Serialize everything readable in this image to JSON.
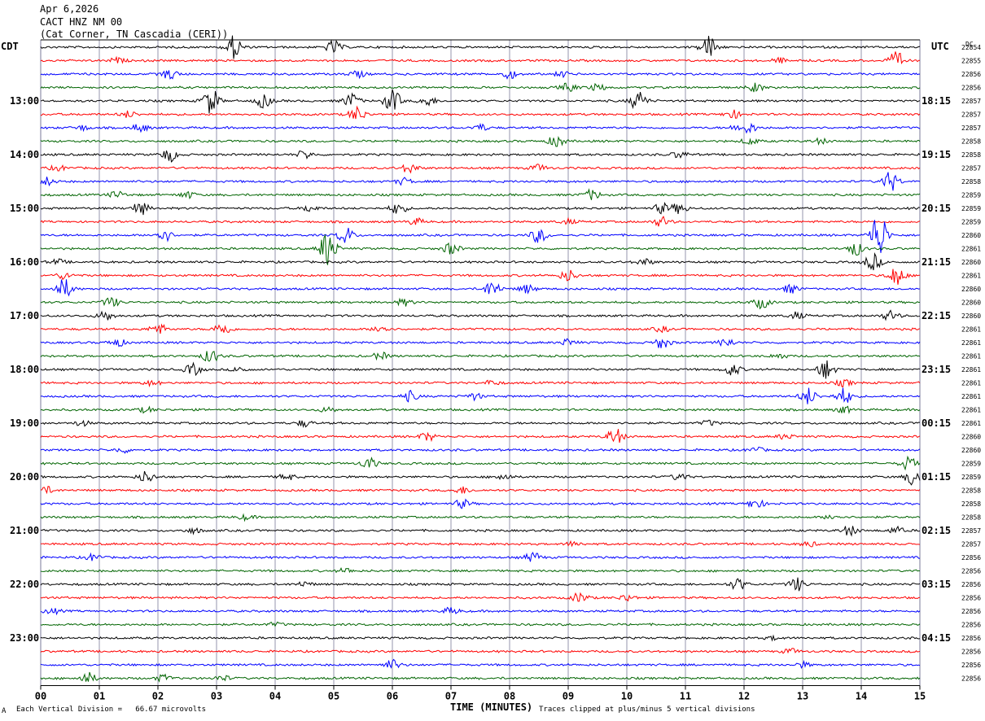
{
  "header": {
    "date": "Apr 6,2026",
    "station": "CACT HNZ NM 00",
    "location": "(Cat Corner, TN Cascadia (CERI))"
  },
  "left_zone": "CDT",
  "right_zone": "UTC",
  "dc_header": "DC",
  "footer": {
    "scale": "Each Vertical Division =   66.67 microvolts",
    "clip": "Traces clipped at plus/minus 5 vertical divisions",
    "mark": "A"
  },
  "colors": {
    "trace_cycle": [
      "#000000",
      "#ff0000",
      "#0000ff",
      "#006400"
    ],
    "grid": "#7a7a9a",
    "axis": "#000000"
  },
  "chart_data": {
    "type": "line",
    "title": "",
    "xlabel": "TIME (MINUTES)",
    "ylabel": "",
    "xlim": [
      0,
      15
    ],
    "x_ticks": [
      "00",
      "01",
      "02",
      "03",
      "04",
      "05",
      "06",
      "07",
      "08",
      "09",
      "10",
      "11",
      "12",
      "13",
      "14",
      "15"
    ],
    "left_time_labels": [
      {
        "row": 4,
        "text": "13:00"
      },
      {
        "row": 8,
        "text": "14:00"
      },
      {
        "row": 12,
        "text": "15:00"
      },
      {
        "row": 16,
        "text": "16:00"
      },
      {
        "row": 20,
        "text": "17:00"
      },
      {
        "row": 24,
        "text": "18:00"
      },
      {
        "row": 28,
        "text": "19:00"
      },
      {
        "row": 32,
        "text": "20:00"
      },
      {
        "row": 36,
        "text": "21:00"
      },
      {
        "row": 40,
        "text": "22:00"
      },
      {
        "row": 44,
        "text": "23:00"
      }
    ],
    "right_time_labels": [
      {
        "row": 4,
        "text": "18:15"
      },
      {
        "row": 8,
        "text": "19:15"
      },
      {
        "row": 12,
        "text": "20:15"
      },
      {
        "row": 16,
        "text": "21:15"
      },
      {
        "row": 20,
        "text": "22:15"
      },
      {
        "row": 24,
        "text": "23:15"
      },
      {
        "row": 28,
        "text": "00:15"
      },
      {
        "row": 32,
        "text": "01:15"
      },
      {
        "row": 36,
        "text": "02:15"
      },
      {
        "row": 40,
        "text": "03:15"
      },
      {
        "row": 44,
        "text": "04:15"
      }
    ],
    "dc_offsets": [
      "22854",
      "22855",
      "22856",
      "22856",
      "22857",
      "22857",
      "22857",
      "22858",
      "22858",
      "22857",
      "22858",
      "22859",
      "22859",
      "22859",
      "22860",
      "22861",
      "22860",
      "22861",
      "22860",
      "22860",
      "22860",
      "22861",
      "22861",
      "22861",
      "22861",
      "22861",
      "22861",
      "22861",
      "22861",
      "22860",
      "22860",
      "22859",
      "22859",
      "22858",
      "22858",
      "22858",
      "22857",
      "22857",
      "22856",
      "22856",
      "22856",
      "22856",
      "22856",
      "22856",
      "22856",
      "22856",
      "22856",
      "22856"
    ],
    "events": [
      [
        [
          3.3,
          14
        ],
        [
          5.0,
          8
        ],
        [
          11.4,
          14
        ]
      ],
      [
        [
          14.6,
          10
        ],
        [
          1.3,
          3
        ],
        [
          12.6,
          3
        ]
      ],
      [
        [
          2.2,
          6
        ],
        [
          5.4,
          4
        ],
        [
          8.0,
          5
        ],
        [
          8.9,
          3
        ]
      ],
      [
        [
          9.0,
          5
        ],
        [
          9.5,
          4
        ],
        [
          12.2,
          5
        ]
      ],
      [
        [
          2.9,
          16
        ],
        [
          3.8,
          8
        ],
        [
          5.3,
          9
        ],
        [
          6.0,
          14
        ],
        [
          6.6,
          6
        ],
        [
          10.2,
          12
        ]
      ],
      [
        [
          1.5,
          4
        ],
        [
          5.4,
          9
        ],
        [
          11.8,
          5
        ]
      ],
      [
        [
          0.7,
          3
        ],
        [
          1.7,
          5
        ],
        [
          7.5,
          4
        ],
        [
          11.9,
          4
        ],
        [
          12.1,
          5
        ]
      ],
      [
        [
          8.8,
          7
        ],
        [
          12.1,
          4
        ],
        [
          13.3,
          3
        ]
      ],
      [
        [
          2.2,
          8
        ],
        [
          4.5,
          5
        ],
        [
          10.9,
          4
        ]
      ],
      [
        [
          0.3,
          3
        ],
        [
          6.3,
          6
        ],
        [
          8.5,
          4
        ]
      ],
      [
        [
          0.1,
          5
        ],
        [
          6.2,
          4
        ],
        [
          14.5,
          12
        ]
      ],
      [
        [
          1.3,
          4
        ],
        [
          2.5,
          4
        ],
        [
          9.4,
          6
        ]
      ],
      [
        [
          1.7,
          8
        ],
        [
          4.6,
          4
        ],
        [
          6.1,
          7
        ],
        [
          10.6,
          6
        ],
        [
          10.9,
          6
        ]
      ],
      [
        [
          6.4,
          4
        ],
        [
          9.0,
          3
        ],
        [
          10.6,
          6
        ]
      ],
      [
        [
          2.1,
          8
        ],
        [
          5.2,
          10
        ],
        [
          8.5,
          9
        ],
        [
          14.3,
          30
        ]
      ],
      [
        [
          4.9,
          22
        ],
        [
          7.0,
          7
        ],
        [
          13.9,
          8
        ]
      ],
      [
        [
          0.3,
          3
        ],
        [
          10.3,
          4
        ],
        [
          14.2,
          10
        ]
      ],
      [
        [
          0.4,
          4
        ],
        [
          9.0,
          7
        ],
        [
          14.6,
          12
        ]
      ],
      [
        [
          0.4,
          12
        ],
        [
          7.7,
          10
        ],
        [
          8.3,
          5
        ],
        [
          12.8,
          5
        ]
      ],
      [
        [
          1.2,
          6
        ],
        [
          6.2,
          4
        ],
        [
          12.3,
          7
        ]
      ],
      [
        [
          1.1,
          6
        ],
        [
          12.9,
          4
        ],
        [
          14.5,
          6
        ]
      ],
      [
        [
          2.0,
          7
        ],
        [
          3.1,
          8
        ],
        [
          5.8,
          5
        ],
        [
          10.6,
          3
        ]
      ],
      [
        [
          1.3,
          5
        ],
        [
          9.0,
          4
        ],
        [
          10.6,
          7
        ],
        [
          11.7,
          5
        ]
      ],
      [
        [
          2.9,
          8
        ],
        [
          5.8,
          4
        ],
        [
          12.6,
          3
        ]
      ],
      [
        [
          2.6,
          7
        ],
        [
          3.4,
          3
        ],
        [
          11.8,
          7
        ],
        [
          13.4,
          12
        ]
      ],
      [
        [
          1.9,
          3
        ],
        [
          7.7,
          3
        ],
        [
          13.7,
          4
        ]
      ],
      [
        [
          6.3,
          6
        ],
        [
          7.4,
          4
        ],
        [
          13.1,
          10
        ],
        [
          13.7,
          10
        ]
      ],
      [
        [
          1.8,
          3
        ],
        [
          4.9,
          3
        ],
        [
          13.7,
          4
        ]
      ],
      [
        [
          0.7,
          3
        ],
        [
          4.5,
          4
        ],
        [
          11.4,
          3
        ]
      ],
      [
        [
          6.6,
          5
        ],
        [
          9.8,
          10
        ],
        [
          12.7,
          3
        ]
      ],
      [
        [
          1.4,
          3
        ],
        [
          12.2,
          3
        ]
      ],
      [
        [
          5.6,
          7
        ],
        [
          14.8,
          8
        ]
      ],
      [
        [
          1.8,
          7
        ],
        [
          4.2,
          4
        ],
        [
          7.9,
          4
        ],
        [
          10.9,
          4
        ],
        [
          14.9,
          12
        ]
      ],
      [
        [
          0.1,
          4
        ],
        [
          7.2,
          4
        ]
      ],
      [
        [
          7.2,
          5
        ],
        [
          12.2,
          6
        ]
      ],
      [
        [
          3.5,
          3
        ],
        [
          13.5,
          3
        ]
      ],
      [
        [
          2.6,
          3
        ],
        [
          13.8,
          6
        ],
        [
          14.6,
          4
        ]
      ],
      [
        [
          9.1,
          3
        ],
        [
          13.1,
          3
        ]
      ],
      [
        [
          0.9,
          4
        ],
        [
          8.4,
          6
        ]
      ],
      [
        [
          5.2,
          3
        ]
      ],
      [
        [
          4.5,
          3
        ],
        [
          11.9,
          7
        ],
        [
          12.9,
          8
        ]
      ],
      [
        [
          9.2,
          6
        ],
        [
          10.0,
          4
        ]
      ],
      [
        [
          0.2,
          3
        ],
        [
          7.0,
          4
        ]
      ],
      [
        [
          4.0,
          2
        ]
      ],
      [
        [
          12.5,
          2
        ]
      ],
      [
        [
          12.8,
          3
        ]
      ],
      [
        [
          6.0,
          6
        ],
        [
          13.0,
          3
        ]
      ],
      [
        [
          0.8,
          7
        ],
        [
          2.1,
          4
        ],
        [
          3.1,
          3
        ]
      ]
    ]
  }
}
